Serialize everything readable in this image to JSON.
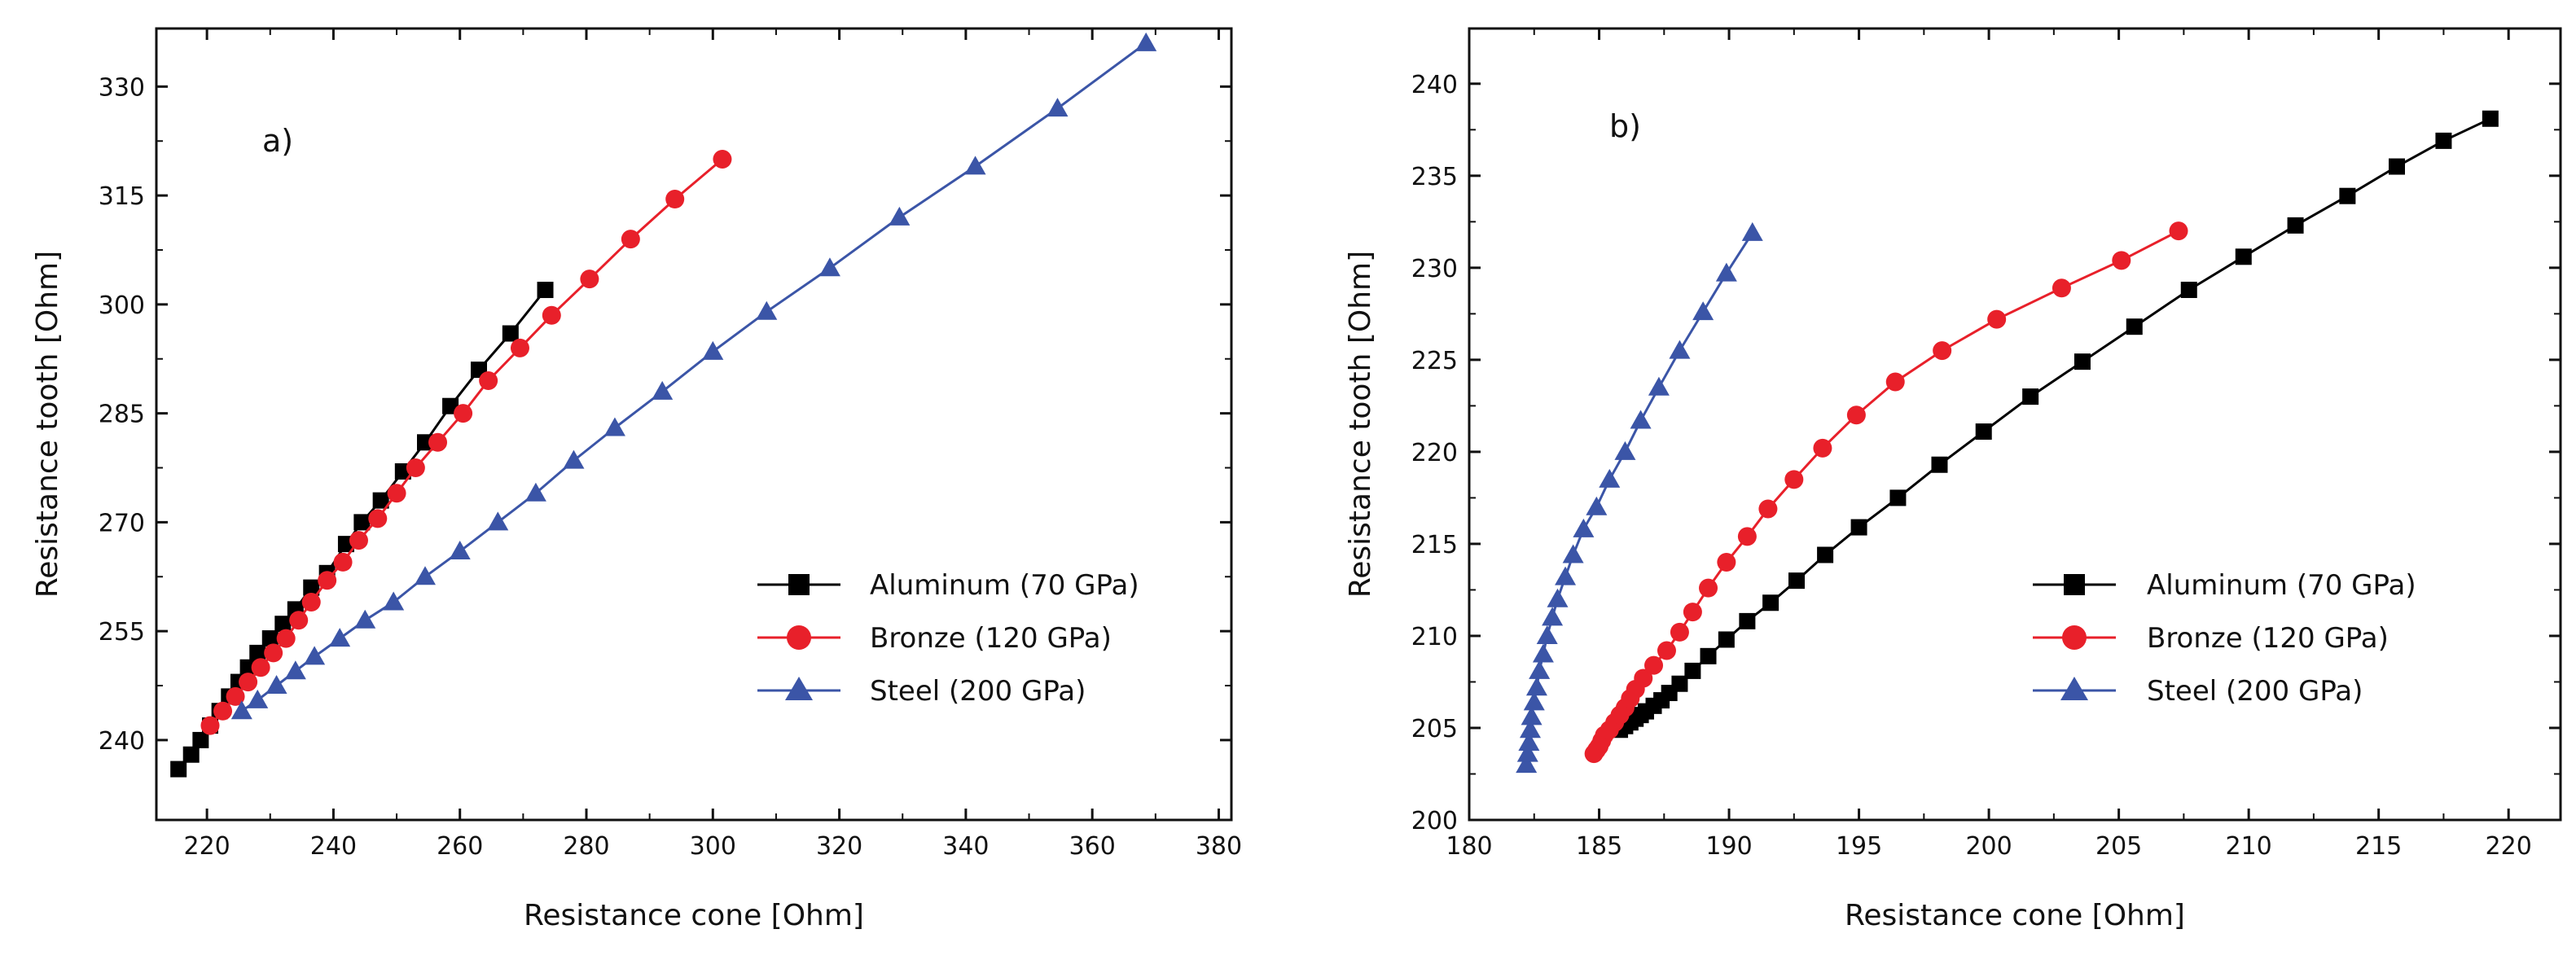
{
  "chart_data": [
    {
      "type": "line",
      "panel_label": "a)",
      "xlabel": "Resistance cone [Ohm]",
      "ylabel": "Resistance tooth [Ohm]",
      "xlim": [
        212,
        382
      ],
      "ylim": [
        229,
        338
      ],
      "xticks": [
        220,
        240,
        260,
        280,
        300,
        320,
        340,
        360,
        380
      ],
      "yticks": [
        240,
        255,
        270,
        285,
        300,
        315,
        330
      ],
      "legend_position": "right",
      "series": [
        {
          "name": "Aluminum (70 GPa)",
          "color": "#000000",
          "marker": "square",
          "points": [
            [
              215.5,
              236
            ],
            [
              217.5,
              238
            ],
            [
              219,
              240
            ],
            [
              220.5,
              242
            ],
            [
              222,
              244
            ],
            [
              223.5,
              246
            ],
            [
              225,
              248
            ],
            [
              226.5,
              250
            ],
            [
              228,
              252
            ],
            [
              230,
              254
            ],
            [
              232,
              256
            ],
            [
              234,
              258
            ],
            [
              236.5,
              261
            ],
            [
              239,
              263
            ],
            [
              242,
              267
            ],
            [
              244.5,
              270
            ],
            [
              247.5,
              273
            ],
            [
              251,
              277
            ],
            [
              254.5,
              281
            ],
            [
              258.5,
              286
            ],
            [
              263,
              291
            ],
            [
              268,
              296
            ],
            [
              273.5,
              302
            ]
          ]
        },
        {
          "name": "Bronze (120 GPa)",
          "color": "#e8202a",
          "marker": "circle",
          "points": [
            [
              220.5,
              242
            ],
            [
              222.5,
              244
            ],
            [
              224.5,
              246
            ],
            [
              226.5,
              248
            ],
            [
              228.5,
              250
            ],
            [
              230.5,
              252
            ],
            [
              232.5,
              254
            ],
            [
              234.5,
              256.5
            ],
            [
              236.5,
              259
            ],
            [
              239,
              262
            ],
            [
              241.5,
              264.5
            ],
            [
              244,
              267.5
            ],
            [
              247,
              270.5
            ],
            [
              250,
              274
            ],
            [
              253,
              277.5
            ],
            [
              256.5,
              281
            ],
            [
              260.5,
              285
            ],
            [
              264.5,
              289.5
            ],
            [
              269.5,
              294
            ],
            [
              274.5,
              298.5
            ],
            [
              280.5,
              303.5
            ],
            [
              287,
              309
            ],
            [
              294,
              314.5
            ],
            [
              301.5,
              320
            ]
          ]
        },
        {
          "name": "Steel (200 GPa)",
          "color": "#3b55a7",
          "marker": "triangle",
          "points": [
            [
              225.5,
              244
            ],
            [
              228,
              245.5
            ],
            [
              231,
              247.5
            ],
            [
              234,
              249.5
            ],
            [
              237,
              251.5
            ],
            [
              241,
              254
            ],
            [
              245,
              256.5
            ],
            [
              249.5,
              259
            ],
            [
              254.5,
              262.5
            ],
            [
              260,
              266
            ],
            [
              266,
              270
            ],
            [
              272,
              274
            ],
            [
              278,
              278.5
            ],
            [
              284.5,
              283
            ],
            [
              292,
              288
            ],
            [
              300,
              293.5
            ],
            [
              308.5,
              299
            ],
            [
              318.5,
              305
            ],
            [
              329.5,
              312
            ],
            [
              341.5,
              319
            ],
            [
              354.5,
              327
            ],
            [
              368.5,
              336
            ]
          ]
        }
      ]
    },
    {
      "type": "line",
      "panel_label": "b)",
      "xlabel": "Resistance cone [Ohm]",
      "ylabel": "Resistance tooth [Ohm]",
      "xlim": [
        180,
        222
      ],
      "ylim": [
        200,
        243
      ],
      "xticks": [
        180,
        185,
        190,
        195,
        200,
        205,
        210,
        215,
        220
      ],
      "yticks": [
        200,
        205,
        210,
        215,
        220,
        225,
        230,
        235,
        240
      ],
      "legend_position": "right",
      "series": [
        {
          "name": "Aluminum (70 GPa)",
          "color": "#000000",
          "marker": "square",
          "points": [
            [
              185.8,
              204.9
            ],
            [
              186,
              205.1
            ],
            [
              186.2,
              205.3
            ],
            [
              186.4,
              205.5
            ],
            [
              186.6,
              205.7
            ],
            [
              186.8,
              205.9
            ],
            [
              187.1,
              206.2
            ],
            [
              187.4,
              206.5
            ],
            [
              187.7,
              206.9
            ],
            [
              188.1,
              207.4
            ],
            [
              188.6,
              208.1
            ],
            [
              189.2,
              208.9
            ],
            [
              189.9,
              209.8
            ],
            [
              190.7,
              210.8
            ],
            [
              191.6,
              211.8
            ],
            [
              192.6,
              213.0
            ],
            [
              193.7,
              214.4
            ],
            [
              195,
              215.9
            ],
            [
              196.5,
              217.5
            ],
            [
              198.1,
              219.3
            ],
            [
              199.8,
              221.1
            ],
            [
              201.6,
              223.0
            ],
            [
              203.6,
              224.9
            ],
            [
              205.6,
              226.8
            ],
            [
              207.7,
              228.8
            ],
            [
              209.8,
              230.6
            ],
            [
              211.8,
              232.3
            ],
            [
              213.8,
              233.9
            ],
            [
              215.7,
              235.5
            ],
            [
              217.5,
              236.9
            ],
            [
              219.3,
              238.1
            ]
          ]
        },
        {
          "name": "Bronze (120 GPa)",
          "color": "#e8202a",
          "marker": "circle",
          "points": [
            [
              184.8,
              203.6
            ],
            [
              184.9,
              203.8
            ],
            [
              185,
              204
            ],
            [
              185.1,
              204.3
            ],
            [
              185.2,
              204.6
            ],
            [
              185.4,
              204.9
            ],
            [
              185.6,
              205.3
            ],
            [
              185.8,
              205.7
            ],
            [
              186,
              206.1
            ],
            [
              186.2,
              206.6
            ],
            [
              186.4,
              207.1
            ],
            [
              186.7,
              207.7
            ],
            [
              187.1,
              208.4
            ],
            [
              187.6,
              209.2
            ],
            [
              188.1,
              210.2
            ],
            [
              188.6,
              211.3
            ],
            [
              189.2,
              212.6
            ],
            [
              189.9,
              214.0
            ],
            [
              190.7,
              215.4
            ],
            [
              191.5,
              216.9
            ],
            [
              192.5,
              218.5
            ],
            [
              193.6,
              220.2
            ],
            [
              194.9,
              222.0
            ],
            [
              196.4,
              223.8
            ],
            [
              198.2,
              225.5
            ],
            [
              200.3,
              227.2
            ],
            [
              202.8,
              228.9
            ],
            [
              205.1,
              230.4
            ],
            [
              207.3,
              232
            ]
          ]
        },
        {
          "name": "Steel (200 GPa)",
          "color": "#3b55a7",
          "marker": "triangle",
          "points": [
            [
              182.2,
              203
            ],
            [
              182.25,
              203.6
            ],
            [
              182.3,
              204.2
            ],
            [
              182.35,
              204.9
            ],
            [
              182.4,
              205.6
            ],
            [
              182.5,
              206.4
            ],
            [
              182.6,
              207.2
            ],
            [
              182.7,
              208.1
            ],
            [
              182.85,
              209.0
            ],
            [
              183,
              210.0
            ],
            [
              183.2,
              211.0
            ],
            [
              183.4,
              212.0
            ],
            [
              183.7,
              213.2
            ],
            [
              184.0,
              214.4
            ],
            [
              184.4,
              215.8
            ],
            [
              184.9,
              217.0
            ],
            [
              185.4,
              218.5
            ],
            [
              186.0,
              220.0
            ],
            [
              186.6,
              221.7
            ],
            [
              187.3,
              223.5
            ],
            [
              188.1,
              225.5
            ],
            [
              189.0,
              227.6
            ],
            [
              189.9,
              229.7
            ],
            [
              190.9,
              231.9
            ]
          ]
        }
      ]
    }
  ]
}
